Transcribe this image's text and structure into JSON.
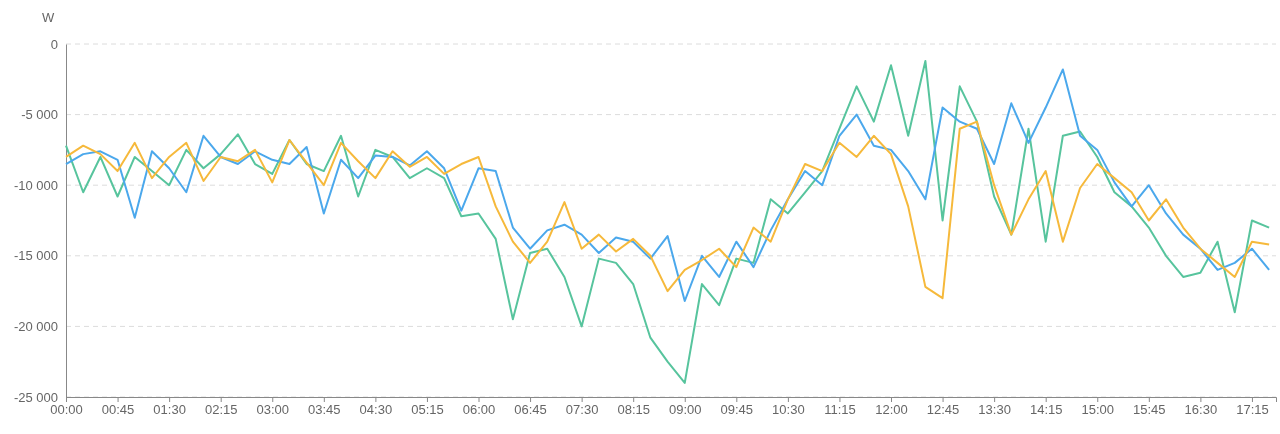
{
  "chart_data": {
    "type": "line",
    "ylabel": "W",
    "grid": "y",
    "marker": "none",
    "line_style": "solid",
    "xlim": [
      0,
      17.6
    ],
    "ylim": [
      -25000,
      0
    ],
    "yticks": [
      {
        "value": 0,
        "label": "0"
      },
      {
        "value": -5000,
        "label": "-5 000"
      },
      {
        "value": -10000,
        "label": "-10 000"
      },
      {
        "value": -15000,
        "label": "-15 000"
      },
      {
        "value": -20000,
        "label": "-20 000"
      },
      {
        "value": -25000,
        "label": "-25 000"
      }
    ],
    "xticks": [
      {
        "value": 0,
        "label": "00:00"
      },
      {
        "value": 0.75,
        "label": "00:45"
      },
      {
        "value": 1.5,
        "label": "01:30"
      },
      {
        "value": 2.25,
        "label": "02:15"
      },
      {
        "value": 3,
        "label": "03:00"
      },
      {
        "value": 3.75,
        "label": "03:45"
      },
      {
        "value": 4.5,
        "label": "04:30"
      },
      {
        "value": 5.25,
        "label": "05:15"
      },
      {
        "value": 6,
        "label": "06:00"
      },
      {
        "value": 6.75,
        "label": "06:45"
      },
      {
        "value": 7.5,
        "label": "07:30"
      },
      {
        "value": 8.25,
        "label": "08:15"
      },
      {
        "value": 9,
        "label": "09:00"
      },
      {
        "value": 9.75,
        "label": "09:45"
      },
      {
        "value": 10.5,
        "label": "10:30"
      },
      {
        "value": 11.25,
        "label": "11:15"
      },
      {
        "value": 12,
        "label": "12:00"
      },
      {
        "value": 12.75,
        "label": "12:45"
      },
      {
        "value": 13.5,
        "label": "13:30"
      },
      {
        "value": 14.25,
        "label": "14:15"
      },
      {
        "value": 15,
        "label": "15:00"
      },
      {
        "value": 15.75,
        "label": "15:45"
      },
      {
        "value": 16.5,
        "label": "16:30"
      },
      {
        "value": 17.25,
        "label": "17:15"
      }
    ],
    "x": [
      0,
      0.25,
      0.5,
      0.75,
      1,
      1.25,
      1.5,
      1.75,
      2,
      2.25,
      2.5,
      2.75,
      3,
      3.25,
      3.5,
      3.75,
      4,
      4.25,
      4.5,
      4.75,
      5,
      5.25,
      5.5,
      5.75,
      6,
      6.25,
      6.5,
      6.75,
      7,
      7.25,
      7.5,
      7.75,
      8,
      8.25,
      8.5,
      8.75,
      9,
      9.25,
      9.5,
      9.75,
      10,
      10.25,
      10.5,
      10.75,
      11,
      11.25,
      11.5,
      11.75,
      12,
      12.25,
      12.5,
      12.75,
      13,
      13.25,
      13.5,
      13.75,
      14,
      14.25,
      14.5,
      14.75,
      15,
      15.25,
      15.5,
      15.75,
      16,
      16.25,
      16.5,
      16.75,
      17,
      17.25,
      17.5
    ],
    "series": [
      {
        "color": "#57c49d",
        "values": [
          -7200,
          -10500,
          -8000,
          -10800,
          -8000,
          -9000,
          -10000,
          -7500,
          -8800,
          -7800,
          -6400,
          -8500,
          -9200,
          -6800,
          -8500,
          -9000,
          -6500,
          -10800,
          -7500,
          -8000,
          -9500,
          -8800,
          -9500,
          -12200,
          -12000,
          -13800,
          -19500,
          -14800,
          -14500,
          -16500,
          -20000,
          -15200,
          -15500,
          -17000,
          -20800,
          -22500,
          -24000,
          -17000,
          -18500,
          -15200,
          -15500,
          -11000,
          -12000,
          -10500,
          -9000,
          -6000,
          -3000,
          -5500,
          -1500,
          -6500,
          -1200,
          -12500,
          -3000,
          -5500,
          -10800,
          -13500,
          -6000,
          -14000,
          -6500,
          -6200,
          -8000,
          -10500,
          -11500,
          -13000,
          -15000,
          -16500,
          -16200,
          -14000,
          -19000,
          -12500,
          -13000
        ]
      },
      {
        "color": "#4ba8ec",
        "values": [
          -8500,
          -7800,
          -7600,
          -8200,
          -12300,
          -7600,
          -8800,
          -10500,
          -6500,
          -8000,
          -8500,
          -7600,
          -8200,
          -8500,
          -7300,
          -12000,
          -8200,
          -9500,
          -7900,
          -8000,
          -8600,
          -7600,
          -8800,
          -11800,
          -8800,
          -9000,
          -13000,
          -14500,
          -13200,
          -12800,
          -13500,
          -14800,
          -13700,
          -14000,
          -15200,
          -13600,
          -18200,
          -15000,
          -16500,
          -14000,
          -15800,
          -13200,
          -11000,
          -9000,
          -10000,
          -6500,
          -5000,
          -7200,
          -7500,
          -9000,
          -11000,
          -4500,
          -5500,
          -6000,
          -8500,
          -4200,
          -7000,
          -4500,
          -1800,
          -6500,
          -7500,
          -9800,
          -11500,
          -10000,
          -12000,
          -13500,
          -14500,
          -16000,
          -15500,
          -14500,
          -16000
        ]
      },
      {
        "color": "#f6b93b",
        "values": [
          -8000,
          -7200,
          -7800,
          -9000,
          -7000,
          -9500,
          -8000,
          -7000,
          -9700,
          -8000,
          -8300,
          -7500,
          -9800,
          -6800,
          -8400,
          -10000,
          -7000,
          -8300,
          -9500,
          -7600,
          -8700,
          -8000,
          -9200,
          -8500,
          -8000,
          -11500,
          -14000,
          -15500,
          -14000,
          -11200,
          -14500,
          -13500,
          -14700,
          -13800,
          -15000,
          -17500,
          -16000,
          -15300,
          -14500,
          -15800,
          -13000,
          -14000,
          -11000,
          -8500,
          -9000,
          -7000,
          -8000,
          -6500,
          -7800,
          -11500,
          -17200,
          -18000,
          -6000,
          -5500,
          -10000,
          -13500,
          -11000,
          -9000,
          -14000,
          -10200,
          -8500,
          -9500,
          -10500,
          -12500,
          -11000,
          -13000,
          -14500,
          -15500,
          -16500,
          -14000,
          -14200
        ]
      }
    ]
  }
}
